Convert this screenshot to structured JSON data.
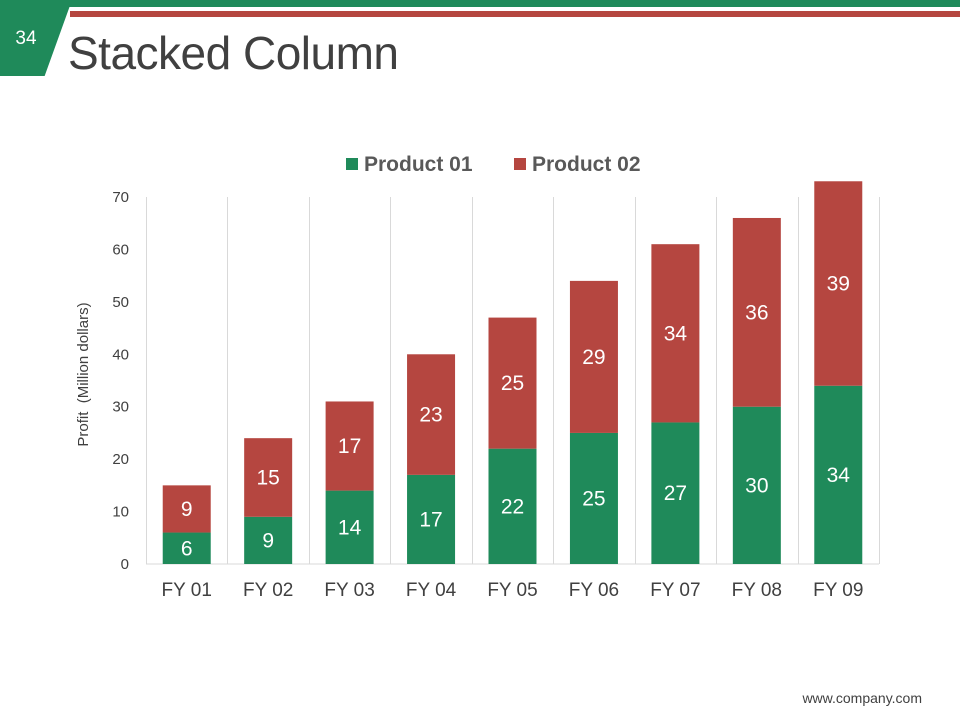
{
  "slide": {
    "page_number": "34",
    "title": "Stacked Column",
    "footer": "www.company.com"
  },
  "colors": {
    "green": "#1f8a5a",
    "red": "#b54640",
    "gridline": "#d9d9d9"
  },
  "chart_data": {
    "type": "bar",
    "stacked": true,
    "title": "",
    "xlabel": "",
    "ylabel": "Profit  (Million dollars)",
    "ylim": [
      0,
      70
    ],
    "yticks": [
      0,
      10,
      20,
      30,
      40,
      50,
      60,
      70
    ],
    "legend_position": "top",
    "categories": [
      "FY 01",
      "FY 02",
      "FY 03",
      "FY 04",
      "FY 05",
      "FY 06",
      "FY 07",
      "FY 08",
      "FY 09"
    ],
    "series": [
      {
        "name": "Product 01",
        "color": "#1f8a5a",
        "values": [
          6,
          9,
          14,
          17,
          22,
          25,
          27,
          30,
          34
        ]
      },
      {
        "name": "Product 02",
        "color": "#b54640",
        "values": [
          9,
          15,
          17,
          23,
          25,
          29,
          34,
          36,
          39
        ]
      }
    ]
  }
}
